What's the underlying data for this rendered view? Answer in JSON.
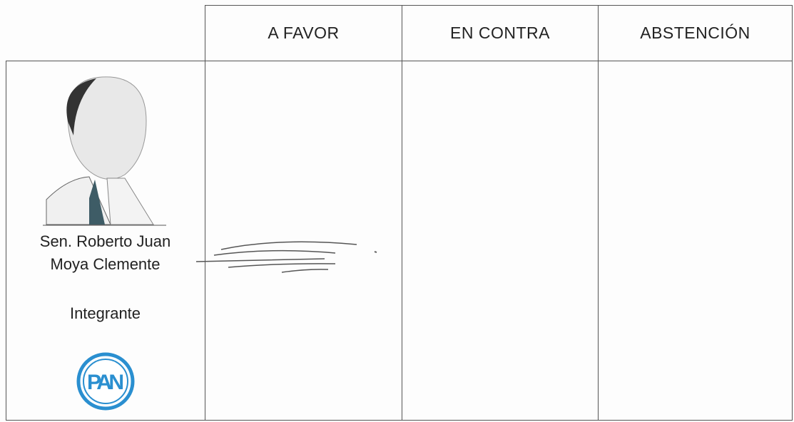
{
  "table": {
    "header": [
      "A FAVOR",
      "EN CONTRA",
      "ABSTENCIÓN"
    ],
    "member": {
      "name_lines": [
        "Sen. Roberto Juan",
        "Moya Clemente"
      ],
      "role": "Integrante",
      "party": "PAN"
    }
  }
}
